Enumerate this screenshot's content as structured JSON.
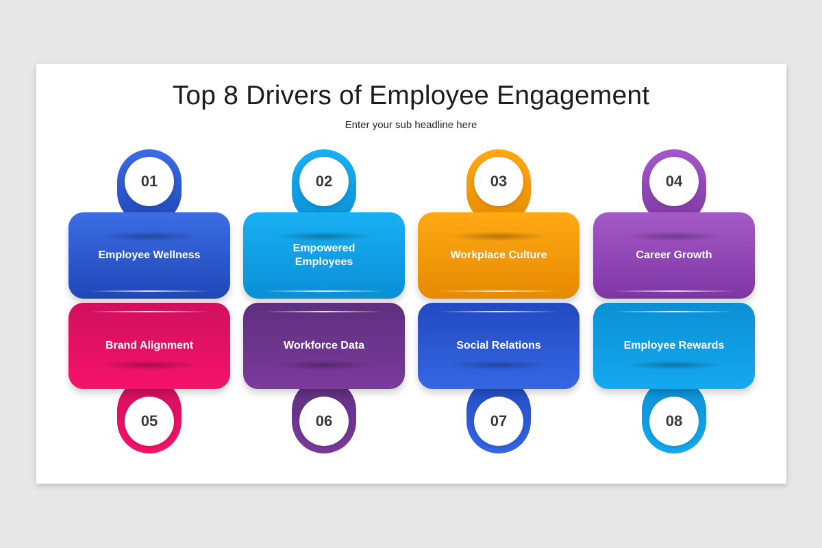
{
  "title": "Top 8 Drivers of Employee Engagement",
  "subtitle": "Enter your sub headline here",
  "items": [
    {
      "number": "01",
      "label": "Employee Wellness",
      "colors": {
        "top": "#3b6de3",
        "bottom": "#1f47b8"
      }
    },
    {
      "number": "02",
      "label": "Empowered Employees",
      "colors": {
        "top": "#18b0f3",
        "bottom": "#0a8fd6"
      }
    },
    {
      "number": "03",
      "label": "Workplace Culture",
      "colors": {
        "top": "#ffa914",
        "bottom": "#e68a00"
      }
    },
    {
      "number": "04",
      "label": "Career Growth",
      "colors": {
        "top": "#a45ac6",
        "bottom": "#7e36a5"
      }
    },
    {
      "number": "05",
      "label": "Brand Alignment",
      "colors": {
        "top": "#d10f5e",
        "bottom": "#f5126a"
      }
    },
    {
      "number": "06",
      "label": "Workforce Data",
      "colors": {
        "top": "#5e2f7d",
        "bottom": "#7b3a9c"
      }
    },
    {
      "number": "07",
      "label": "Social Relations",
      "colors": {
        "top": "#2249c2",
        "bottom": "#3567e3"
      }
    },
    {
      "number": "08",
      "label": "Employee Rewards",
      "colors": {
        "top": "#0b8fd4",
        "bottom": "#14a9ef"
      }
    }
  ]
}
